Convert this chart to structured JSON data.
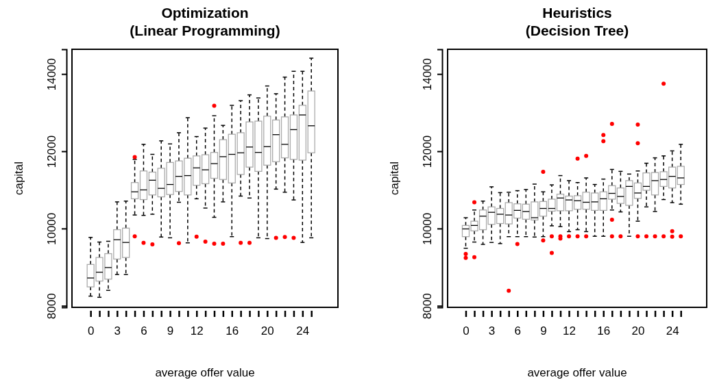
{
  "chart_data": [
    {
      "type": "box",
      "title": "Optimization\n(Linear Programming)",
      "xlabel": "average offer value",
      "ylabel": "capital",
      "categories": [
        "0",
        null,
        null,
        "3",
        null,
        null,
        "6",
        null,
        null,
        "9",
        null,
        null,
        "12",
        null,
        null,
        null,
        "16",
        null,
        null,
        null,
        "20",
        null,
        null,
        null,
        "24",
        null
      ],
      "ylim": [
        7960,
        14640
      ],
      "yticks": [
        8000,
        10000,
        12000,
        14000
      ],
      "boxes": [
        {
          "low": 8250,
          "q1": 8490,
          "median": 8720,
          "q3": 9070,
          "high": 9770
        },
        {
          "low": 8220,
          "q1": 8640,
          "median": 8870,
          "q3": 9250,
          "high": 9650
        },
        {
          "low": 8400,
          "q1": 8690,
          "median": 8990,
          "q3": 9350,
          "high": 9670
        },
        {
          "low": 8810,
          "q1": 9210,
          "median": 9710,
          "q3": 9970,
          "high": 10690
        },
        {
          "low": 8810,
          "q1": 9250,
          "median": 9640,
          "q3": 10010,
          "high": 10710
        },
        {
          "low": 10350,
          "q1": 10770,
          "median": 10950,
          "q3": 11190,
          "high": 11790,
          "outliers": [
            11850,
            9800
          ]
        },
        {
          "low": 10340,
          "q1": 10750,
          "median": 11000,
          "q3": 11490,
          "high": 12180,
          "outliers": [
            9630
          ]
        },
        {
          "low": 10370,
          "q1": 10870,
          "median": 11250,
          "q3": 11460,
          "high": 11920,
          "outliers": [
            9590
          ]
        },
        {
          "low": 9780,
          "q1": 10820,
          "median": 11040,
          "q3": 11560,
          "high": 12270
        },
        {
          "low": 9760,
          "q1": 10880,
          "median": 11140,
          "q3": 11710,
          "high": 12190
        },
        {
          "low": 10680,
          "q1": 10960,
          "median": 11350,
          "q3": 11750,
          "high": 12480,
          "outliers": [
            9620
          ]
        },
        {
          "low": 9630,
          "q1": 10870,
          "median": 11370,
          "q3": 11820,
          "high": 12870
        },
        {
          "low": 10770,
          "q1": 11120,
          "median": 11570,
          "q3": 11880,
          "high": 12380,
          "outliers": [
            9790
          ]
        },
        {
          "low": 10530,
          "q1": 11160,
          "median": 11520,
          "q3": 11910,
          "high": 12600,
          "outliers": [
            9660
          ]
        },
        {
          "low": 10290,
          "q1": 11300,
          "median": 11680,
          "q3": 11970,
          "high": 12920,
          "outliers": [
            13180,
            9610
          ]
        },
        {
          "low": 10690,
          "q1": 11270,
          "median": 11860,
          "q3": 12300,
          "high": 12670,
          "outliers": [
            9610
          ]
        },
        {
          "low": 9790,
          "q1": 11180,
          "median": 11920,
          "q3": 12440,
          "high": 13190
        },
        {
          "low": 10840,
          "q1": 11400,
          "median": 11960,
          "q3": 12480,
          "high": 13310,
          "outliers": [
            9630
          ]
        },
        {
          "low": 10790,
          "q1": 11590,
          "median": 12110,
          "q3": 12760,
          "high": 13460,
          "outliers": [
            9630
          ]
        },
        {
          "low": 9760,
          "q1": 11480,
          "median": 11970,
          "q3": 12780,
          "high": 13380
        },
        {
          "low": 9740,
          "q1": 11640,
          "median": 12120,
          "q3": 12910,
          "high": 13690
        },
        {
          "low": 11020,
          "q1": 11730,
          "median": 12430,
          "q3": 12810,
          "high": 13490,
          "outliers": [
            9760
          ]
        },
        {
          "low": 10940,
          "q1": 11830,
          "median": 12180,
          "q3": 12890,
          "high": 13920,
          "outliers": [
            9780
          ]
        },
        {
          "low": 10740,
          "q1": 11790,
          "median": 12560,
          "q3": 12940,
          "high": 14070,
          "outliers": [
            9760
          ]
        },
        {
          "low": 9640,
          "q1": 11770,
          "median": 12940,
          "q3": 13190,
          "high": 14070
        },
        {
          "low": 9760,
          "q1": 11960,
          "median": 12660,
          "q3": 13560,
          "high": 14410
        }
      ]
    },
    {
      "type": "box",
      "title": "Heuristics\n(Decision Tree)",
      "xlabel": "average offer value",
      "ylabel": "capital",
      "categories": [
        "0",
        null,
        null,
        "3",
        null,
        null,
        "6",
        null,
        null,
        "9",
        null,
        null,
        "12",
        null,
        null,
        null,
        "16",
        null,
        null,
        null,
        "20",
        null,
        null,
        null,
        "24",
        null
      ],
      "ylim": [
        7960,
        14640
      ],
      "yticks": [
        8000,
        10000,
        12000,
        14000
      ],
      "boxes": [
        {
          "low": 9490,
          "q1": 9790,
          "median": 9990,
          "q3": 10080,
          "high": 10280,
          "outliers": [
            9340,
            9240
          ]
        },
        {
          "low": 9650,
          "q1": 9940,
          "median": 10080,
          "q3": 10190,
          "high": 10480,
          "outliers": [
            10680,
            9260
          ]
        },
        {
          "low": 9590,
          "q1": 9970,
          "median": 10320,
          "q3": 10480,
          "high": 10710
        },
        {
          "low": 9640,
          "q1": 10110,
          "median": 10420,
          "q3": 10560,
          "high": 11080
        },
        {
          "low": 9610,
          "q1": 10130,
          "median": 10370,
          "q3": 10520,
          "high": 10930
        },
        {
          "low": 9790,
          "q1": 10120,
          "median": 10350,
          "q3": 10670,
          "high": 10940,
          "outliers": [
            8390
          ]
        },
        {
          "low": 9790,
          "q1": 10270,
          "median": 10470,
          "q3": 10640,
          "high": 10980,
          "outliers": [
            9600
          ]
        },
        {
          "low": 9790,
          "q1": 10240,
          "median": 10440,
          "q3": 10630,
          "high": 11010
        },
        {
          "low": 9780,
          "q1": 10220,
          "median": 10280,
          "q3": 10690,
          "high": 11150
        },
        {
          "low": 9790,
          "q1": 10320,
          "median": 10520,
          "q3": 10700,
          "high": 10950,
          "outliers": [
            11470,
            9690
          ]
        },
        {
          "low": 10070,
          "q1": 10450,
          "median": 10520,
          "q3": 10760,
          "high": 11130,
          "outliers": [
            9800,
            9370
          ]
        },
        {
          "low": 10050,
          "q1": 10460,
          "median": 10790,
          "q3": 10890,
          "high": 11370,
          "outliers": [
            9800,
            9740
          ]
        },
        {
          "low": 9920,
          "q1": 10460,
          "median": 10740,
          "q3": 10840,
          "high": 11240,
          "outliers": [
            9800
          ]
        },
        {
          "low": 9970,
          "q1": 10500,
          "median": 10720,
          "q3": 10850,
          "high": 11190,
          "outliers": [
            11810,
            9800
          ]
        },
        {
          "low": 9920,
          "q1": 10500,
          "median": 10680,
          "q3": 10940,
          "high": 11310,
          "outliers": [
            11880,
            9800
          ]
        },
        {
          "low": 9800,
          "q1": 10470,
          "median": 10690,
          "q3": 10920,
          "high": 11140
        },
        {
          "low": 9800,
          "q1": 10470,
          "median": 10770,
          "q3": 10950,
          "high": 11280,
          "outliers": [
            12420,
            12260
          ]
        },
        {
          "low": 10480,
          "q1": 10760,
          "median": 10910,
          "q3": 11110,
          "high": 11530,
          "outliers": [
            12710,
            10230,
            9800
          ]
        },
        {
          "low": 10430,
          "q1": 10650,
          "median": 10830,
          "q3": 11050,
          "high": 11480,
          "outliers": [
            9800
          ]
        },
        {
          "low": 9800,
          "q1": 10600,
          "median": 11090,
          "q3": 11240,
          "high": 11410
        },
        {
          "low": 10190,
          "q1": 10780,
          "median": 10920,
          "q3": 11180,
          "high": 11490,
          "outliers": [
            12690,
            12210,
            9800
          ]
        },
        {
          "low": 10560,
          "q1": 10990,
          "median": 11090,
          "q3": 11440,
          "high": 11690,
          "outliers": [
            9800
          ]
        },
        {
          "low": 10440,
          "q1": 10870,
          "median": 11240,
          "q3": 11450,
          "high": 11830,
          "outliers": [
            9800
          ]
        },
        {
          "low": 10750,
          "q1": 11090,
          "median": 11270,
          "q3": 11470,
          "high": 11880,
          "outliers": [
            13750,
            9800
          ]
        },
        {
          "low": 10670,
          "q1": 11050,
          "median": 11350,
          "q3": 11590,
          "high": 12010,
          "outliers": [
            9930,
            9790
          ]
        },
        {
          "low": 10630,
          "q1": 11140,
          "median": 11310,
          "q3": 11610,
          "high": 12180,
          "outliers": [
            9800
          ]
        }
      ]
    }
  ]
}
